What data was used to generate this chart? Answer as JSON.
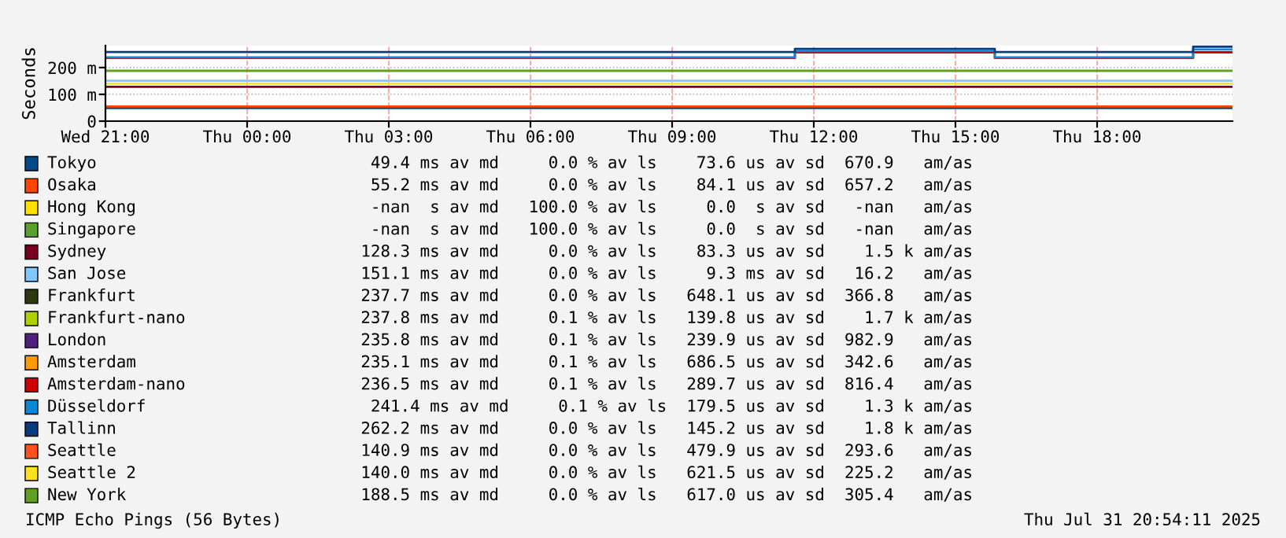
{
  "chart_data": {
    "type": "step",
    "ylabel": "Seconds",
    "xlim": [
      "2025-07-30T21:00",
      "2025-07-31T20:52"
    ],
    "xticks": [
      {
        "value": "2025-07-30T21:00",
        "label": "Wed 21:00"
      },
      {
        "value": "2025-07-31T00:00",
        "label": "Thu 00:00"
      },
      {
        "value": "2025-07-31T03:00",
        "label": "Thu 03:00"
      },
      {
        "value": "2025-07-31T06:00",
        "label": "Thu 06:00"
      },
      {
        "value": "2025-07-31T09:00",
        "label": "Thu 09:00"
      },
      {
        "value": "2025-07-31T12:00",
        "label": "Thu 12:00"
      },
      {
        "value": "2025-07-31T15:00",
        "label": "Thu 15:00"
      },
      {
        "value": "2025-07-31T18:00",
        "label": "Thu 18:00"
      }
    ],
    "ylim": [
      0,
      282
    ],
    "yticks": [
      0,
      {
        "value": 100,
        "label": "100 m"
      },
      {
        "value": 200,
        "label": "200 m"
      }
    ],
    "grid": true,
    "legend": "bottom",
    "line_style": "solid",
    "marker": "none",
    "x": [
      "2025-07-30T21:00",
      "2025-07-31T11:36",
      "2025-07-31T15:50",
      "2025-07-31T20:02",
      "2025-07-31T20:52"
    ],
    "series": [
      {
        "name": "Tokyo",
        "color": "#004a8c",
        "values": [
          49,
          49,
          49,
          49,
          49
        ]
      },
      {
        "name": "Osaka",
        "color": "#ff4500",
        "values": [
          55,
          55,
          55,
          55,
          55
        ]
      },
      {
        "name": "Hong Kong",
        "color": "#ffe000",
        "values": [
          null,
          null,
          null,
          null,
          null
        ]
      },
      {
        "name": "Singapore",
        "color": "#5aa02c",
        "values": [
          null,
          null,
          null,
          null,
          null
        ]
      },
      {
        "name": "Sydney",
        "color": "#7a0020",
        "values": [
          128,
          128,
          128,
          128,
          128
        ]
      },
      {
        "name": "San Jose",
        "color": "#80c8ff",
        "values": [
          151,
          151,
          151,
          151,
          151
        ]
      },
      {
        "name": "Frankfurt",
        "color": "#2e3a10",
        "values": [
          null,
          null,
          null,
          null,
          null
        ]
      },
      {
        "name": "Frankfurt-nano",
        "color": "#b0d000",
        "values": [
          null,
          null,
          null,
          null,
          null
        ]
      },
      {
        "name": "London",
        "color": "#502080",
        "values": [
          null,
          null,
          null,
          null,
          null
        ]
      },
      {
        "name": "Amsterdam",
        "color": "#ff9a00",
        "values": [
          null,
          null,
          null,
          null,
          null
        ]
      },
      {
        "name": "Amsterdam-nano",
        "color": "#d00000",
        "values": [
          236,
          257,
          236,
          257,
          257
        ]
      },
      {
        "name": "Düsseldorf",
        "color": "#0a88d8",
        "values": [
          238,
          262,
          238,
          268,
          268
        ]
      },
      {
        "name": "Tallinn",
        "color": "#0a3a80",
        "values": [
          258,
          270,
          258,
          278,
          278
        ]
      },
      {
        "name": "Seattle",
        "color": "#ff5020",
        "values": [
          null,
          null,
          null,
          null,
          null
        ]
      },
      {
        "name": "Seattle 2",
        "color": "#ffe020",
        "values": [
          140,
          140,
          140,
          140,
          140
        ]
      },
      {
        "name": "New York",
        "color": "#60a020",
        "values": [
          188,
          188,
          188,
          188,
          188
        ]
      }
    ],
    "annotations": [
      "49.4 ms av md     0.0 % av ls    73.6 us av sd  670.9   am/as",
      "55.2 ms av md     0.0 % av ls    84.1 us av sd  657.2   am/as",
      "-nan  s av md   100.0 % av ls     0.0  s av sd   -nan   am/as",
      "-nan  s av md   100.0 % av ls     0.0  s av sd   -nan   am/as",
      "128.3 ms av md     0.0 % av ls    83.3 us av sd    1.5 k am/as",
      "151.1 ms av md     0.0 % av ls     9.3 ms av sd   16.2   am/as",
      "237.7 ms av md     0.0 % av ls   648.1 us av sd  366.8   am/as",
      "237.8 ms av md     0.1 % av ls   139.8 us av sd    1.7 k am/as",
      "235.8 ms av md     0.1 % av ls   239.9 us av sd  982.9   am/as",
      "235.1 ms av md     0.1 % av ls   686.5 us av sd  342.6   am/as",
      "236.5 ms av md     0.1 % av ls   289.7 us av sd  816.4   am/as",
      "241.4 ms av md     0.1 % av ls  179.5 us av sd    1.3 k am/as",
      "262.2 ms av md     0.0 % av ls   145.2 us av sd    1.8 k am/as",
      "140.9 ms av md     0.0 % av ls   479.9 us av sd  293.6   am/as",
      "140.0 ms av md     0.0 % av ls   621.5 us av sd  225.2   am/as",
      "188.5 ms av md     0.0 % av ls   617.0 us av sd  305.4   am/as",
      "ICMP Echo Pings (56 Bytes)",
      "Thu Jul 31 20:54:11 2025"
    ]
  }
}
